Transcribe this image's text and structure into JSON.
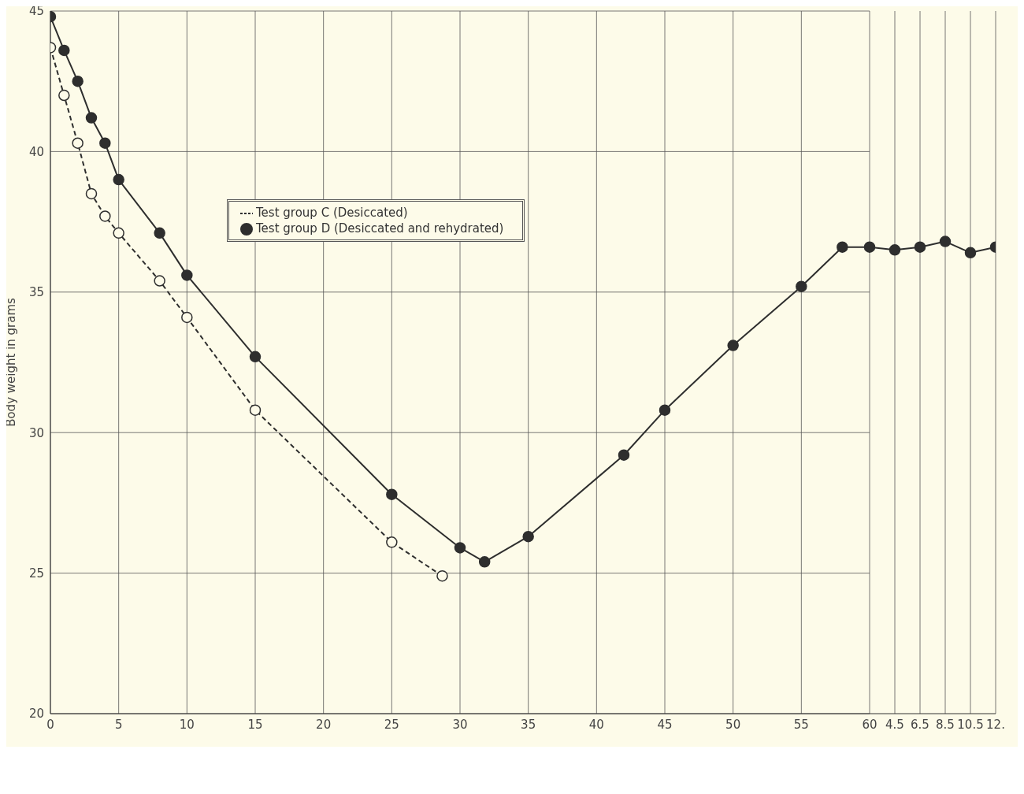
{
  "chart_data": [
    {
      "type": "line",
      "ylabel": "Body weight in grams",
      "xlim": [
        0,
        60
      ],
      "xticks": [
        0,
        5,
        10,
        15,
        20,
        25,
        30,
        35,
        40,
        45,
        50,
        55,
        60
      ],
      "ylim": [
        20,
        45
      ],
      "yticks": [
        20,
        25,
        30,
        35,
        40,
        45
      ],
      "grid": true,
      "legend": "top",
      "series": [
        {
          "name": "Test group C (Desiccated)",
          "color": "#2e2e2e",
          "marker": "circle",
          "line_style": "dashed",
          "x": [
            0,
            1,
            2,
            3,
            4,
            5,
            8,
            10,
            15,
            25,
            28.7
          ],
          "values": [
            43.7,
            42.0,
            40.3,
            38.5,
            37.7,
            37.1,
            35.4,
            34.1,
            30.8,
            26.1,
            24.9
          ]
        },
        {
          "name": "Test group D (Desiccated and rehydrated)",
          "color": "#2e2e2e",
          "marker": "circle",
          "line_style": "solid",
          "x": [
            0,
            1,
            2,
            3,
            4,
            5,
            8,
            10,
            15,
            25,
            30,
            31.8,
            35,
            42,
            45,
            50,
            55,
            58,
            60
          ],
          "values": [
            44.8,
            43.6,
            42.5,
            41.2,
            40.3,
            39.0,
            37.1,
            35.6,
            32.7,
            27.8,
            25.9,
            25.4,
            26.3,
            29.2,
            30.8,
            33.1,
            35.2,
            36.6,
            36.6
          ]
        }
      ]
    },
    {
      "type": "line",
      "tick_labels": "x",
      "xlim": [
        2.5,
        12.5
      ],
      "xticks": [
        4.5,
        6.5,
        8.5,
        10.5,
        {
          "value": 12.5,
          "label": "12."
        }
      ],
      "ylim": [
        20,
        45
      ],
      "yticks": [
        20,
        25,
        30,
        35,
        40,
        45
      ],
      "grid": true,
      "series": [
        {
          "color": "#2e2e2e",
          "marker": "circle",
          "line_style": "solid",
          "x": [
            2.5,
            4.5,
            6.5,
            8.5,
            10.5,
            12.5
          ],
          "values": [
            36.6,
            36.5,
            36.6,
            36.8,
            36.4,
            36.6
          ]
        }
      ]
    }
  ]
}
